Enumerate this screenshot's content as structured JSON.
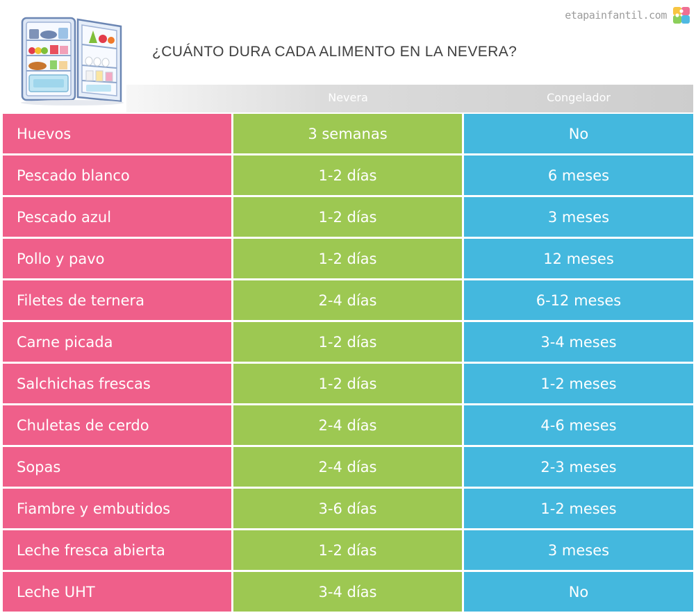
{
  "header": {
    "title": "¿CUÁNTO DURA CADA ALIMENTO EN LA NEVERA?",
    "brand": "etapainfantil.com",
    "illustration_icon": "open-fridge-icon",
    "brand_logo_icon": "puzzle-logo-icon"
  },
  "columns": {
    "fridge": "Nevera",
    "freezer": "Congelador"
  },
  "colors": {
    "food_column": "#ef5f8a",
    "fridge_column": "#9dc852",
    "freezer_column": "#44b8de",
    "title_text": "#3f3f3f"
  },
  "rows": [
    {
      "food": "Huevos",
      "fridge": "3 semanas",
      "freezer": "No"
    },
    {
      "food": "Pescado blanco",
      "fridge": "1-2 días",
      "freezer": "6 meses"
    },
    {
      "food": "Pescado azul",
      "fridge": "1-2 días",
      "freezer": "3 meses"
    },
    {
      "food": "Pollo y pavo",
      "fridge": "1-2 días",
      "freezer": "12 meses"
    },
    {
      "food": "Filetes de ternera",
      "fridge": "2-4 días",
      "freezer": "6-12 meses"
    },
    {
      "food": "Carne picada",
      "fridge": "1-2 días",
      "freezer": "3-4 meses"
    },
    {
      "food": "Salchichas frescas",
      "fridge": "1-2 días",
      "freezer": "1-2 meses"
    },
    {
      "food": "Chuletas de cerdo",
      "fridge": "2-4 días",
      "freezer": "4-6 meses"
    },
    {
      "food": "Sopas",
      "fridge": "2-4 días",
      "freezer": "2-3 meses"
    },
    {
      "food": "Fiambre y embutidos",
      "fridge": "3-6 días",
      "freezer": "1-2 meses"
    },
    {
      "food": "Leche fresca abierta",
      "fridge": "1-2 días",
      "freezer": "3 meses"
    },
    {
      "food": "Leche UHT",
      "fridge": "3-4 días",
      "freezer": "No"
    }
  ]
}
